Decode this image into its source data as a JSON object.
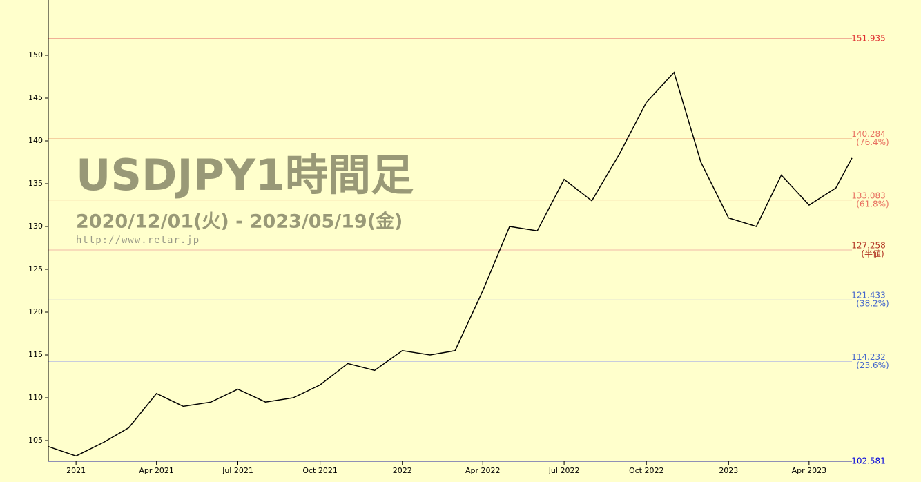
{
  "chart_data": {
    "type": "line",
    "title": "USDJPY1時間足",
    "subtitle": "2020/12/01(火) - 2023/05/19(金)",
    "source": "http://www.retar.jp",
    "x": [
      "2020-12",
      "2021-01",
      "2021-02",
      "2021-03",
      "2021-04",
      "2021-05",
      "2021-06",
      "2021-07",
      "2021-08",
      "2021-09",
      "2021-10",
      "2021-11",
      "2021-12",
      "2022-01",
      "2022-02",
      "2022-03",
      "2022-04",
      "2022-05",
      "2022-06",
      "2022-07",
      "2022-08",
      "2022-09",
      "2022-10",
      "2022-11",
      "2022-12",
      "2023-01",
      "2023-02",
      "2023-03",
      "2023-04",
      "2023-05",
      "2023-05-19"
    ],
    "series": [
      {
        "name": "USDJPY",
        "color": "#000000",
        "values": [
          104.3,
          103.2,
          104.8,
          106.5,
          110.5,
          109.0,
          109.5,
          111.0,
          109.5,
          110.0,
          111.5,
          114.0,
          113.2,
          115.5,
          115.0,
          115.5,
          122.5,
          130.0,
          129.5,
          135.5,
          133.0,
          138.5,
          144.5,
          148.0,
          137.5,
          131.0,
          130.0,
          136.0,
          132.5,
          134.5,
          138.0
        ]
      }
    ],
    "xlim": [
      "2020-12-01",
      "2023-05-19"
    ],
    "xticks": [
      {
        "value": "2021-01",
        "label": "2021"
      },
      {
        "value": "2021-04",
        "label": "Apr 2021"
      },
      {
        "value": "2021-07",
        "label": "Jul 2021"
      },
      {
        "value": "2021-10",
        "label": "Oct 2021"
      },
      {
        "value": "2022-01",
        "label": "2022"
      },
      {
        "value": "2022-04",
        "label": "Apr 2022"
      },
      {
        "value": "2022-07",
        "label": "Jul 2022"
      },
      {
        "value": "2022-10",
        "label": "Oct 2022"
      },
      {
        "value": "2023-01",
        "label": "2023"
      },
      {
        "value": "2023-04",
        "label": "Apr 2023"
      }
    ],
    "ylim": [
      102.581,
      156.45
    ],
    "yticks": [
      105,
      110,
      115,
      120,
      125,
      130,
      135,
      140,
      145,
      150
    ],
    "levels": [
      {
        "value": 151.935,
        "color": "#e03030",
        "line": "#e06060"
      },
      {
        "value": 140.284,
        "ratio": "(76.4%)",
        "color": "#e87060",
        "line": "#f5d0a0"
      },
      {
        "value": 133.083,
        "ratio": "(61.8%)",
        "color": "#e87060",
        "line": "#f5d0a0"
      },
      {
        "value": 127.258,
        "ratio": "(半値)",
        "color": "#b03020",
        "line": "#f0b8a8"
      },
      {
        "value": 121.433,
        "ratio": "(38.2%)",
        "color": "#4466cc",
        "line": "#c8ccdd"
      },
      {
        "value": 114.232,
        "ratio": "(23.6%)",
        "color": "#4466cc",
        "line": "#c8ccdd"
      },
      {
        "value": 102.581,
        "color": "#0000dd",
        "line": "#2020a0"
      }
    ]
  }
}
